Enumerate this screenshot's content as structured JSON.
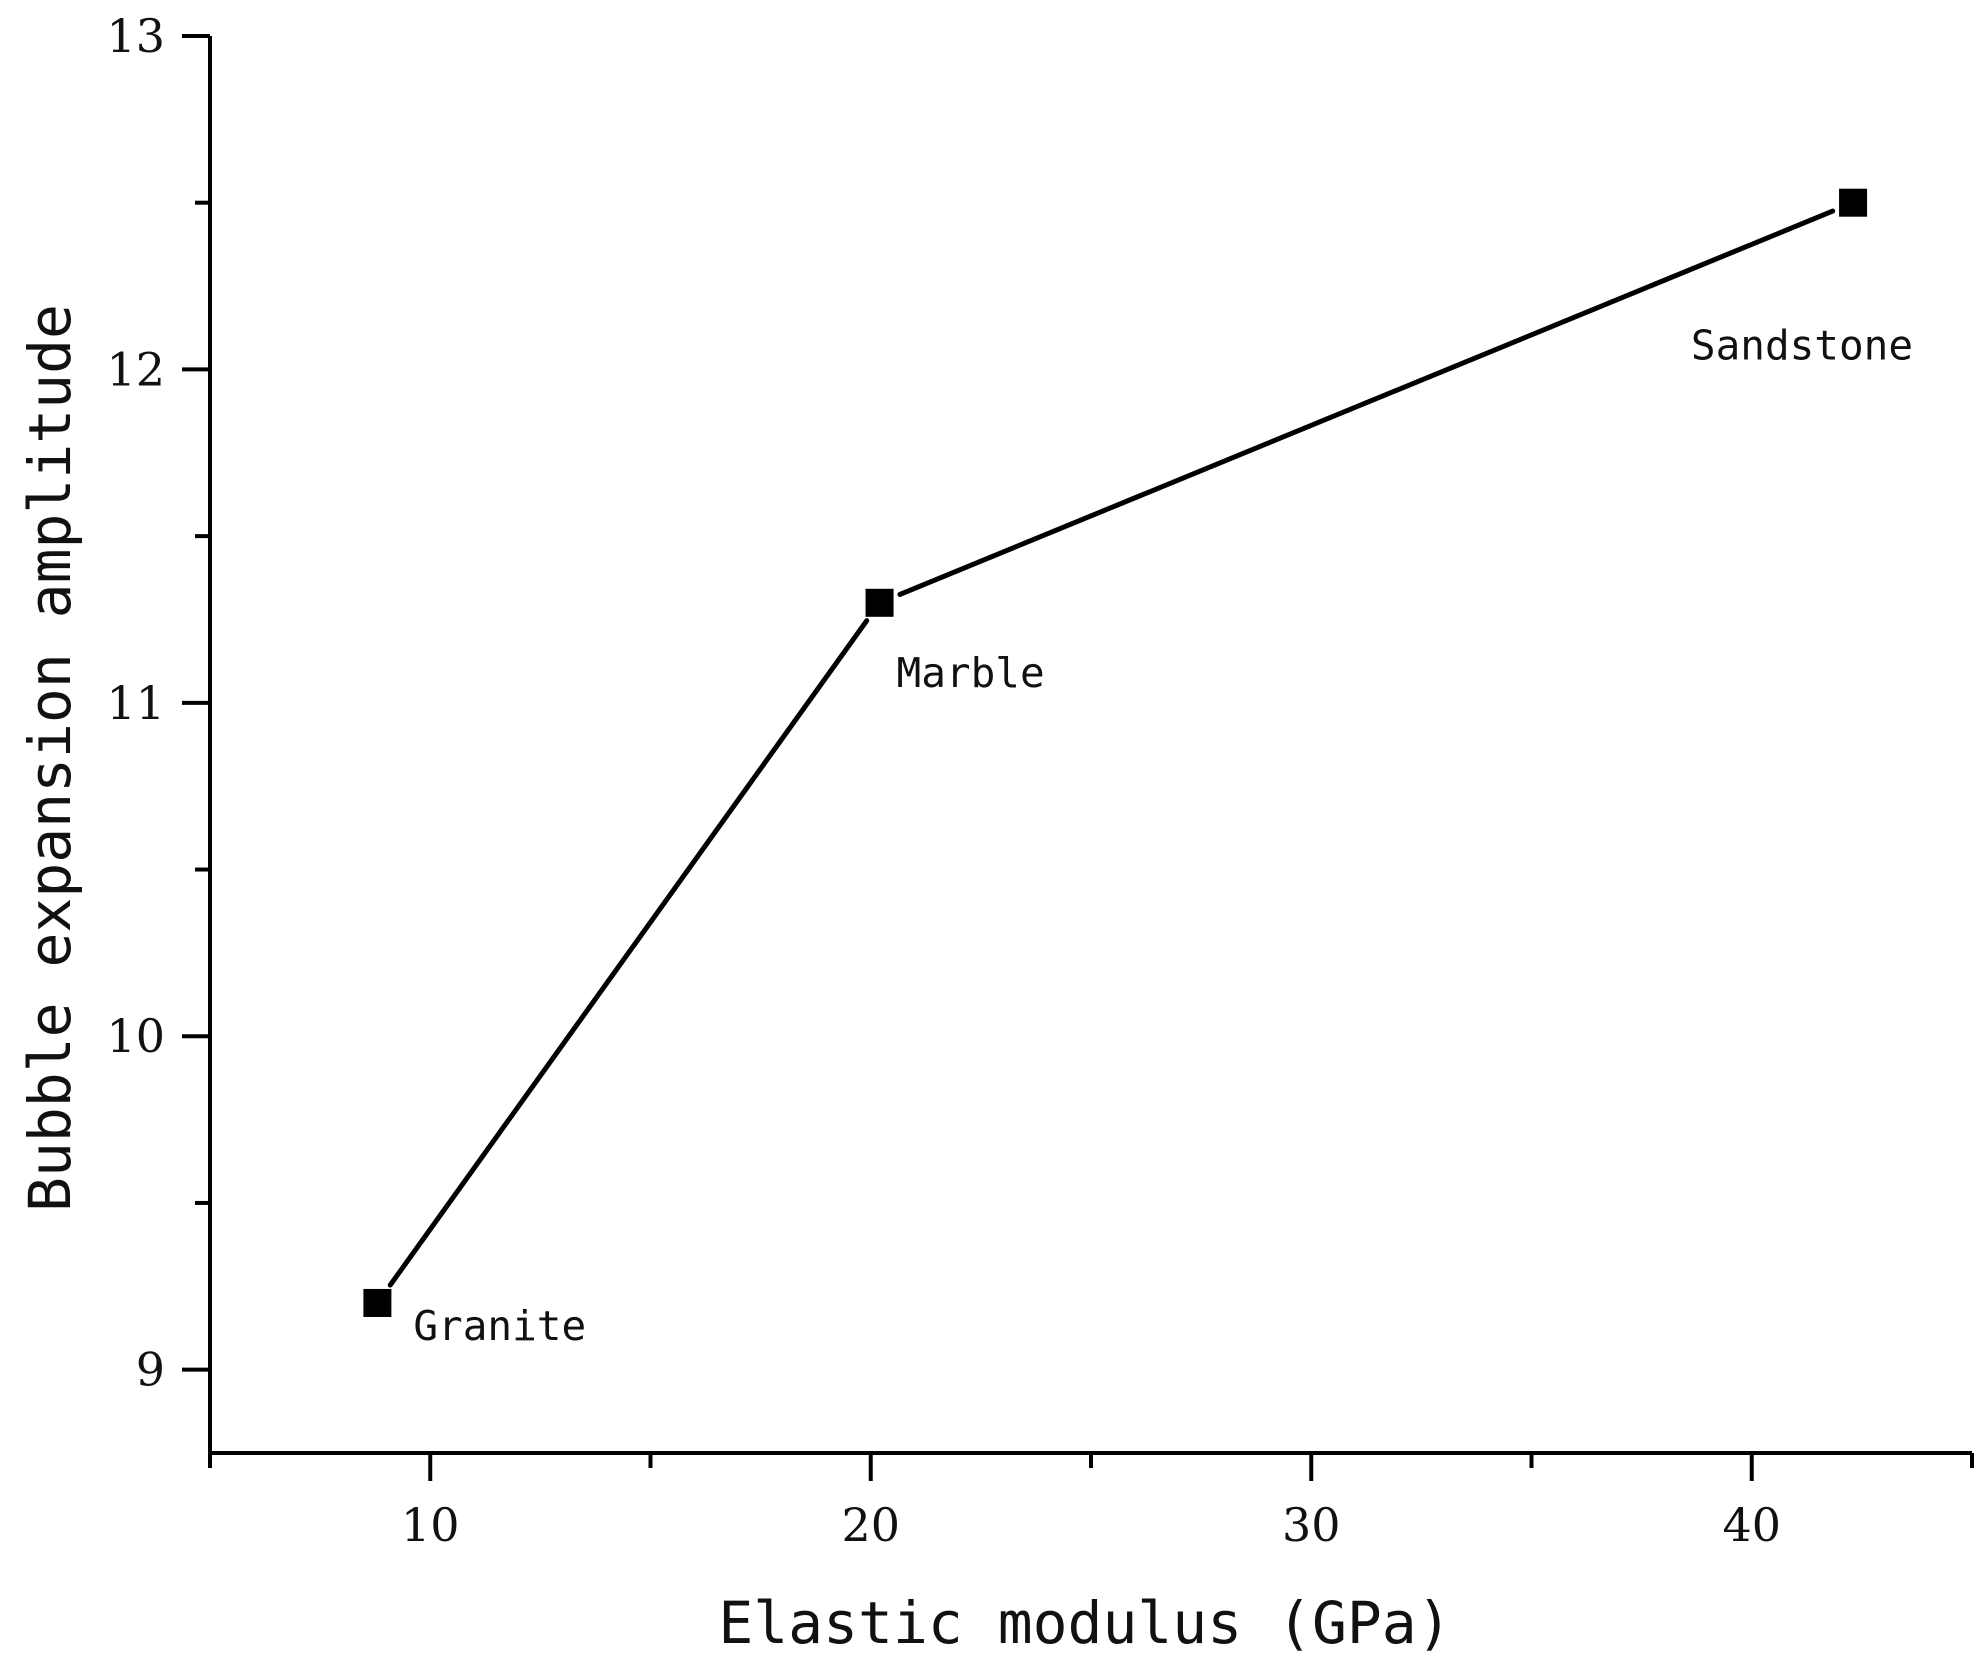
{
  "chart_data": {
    "type": "line",
    "title": "",
    "xlabel": "Elastic modulus (GPa)",
    "ylabel": "Bubble expansion amplitude",
    "xlim": [
      5,
      45
    ],
    "ylim": [
      8.75,
      13
    ],
    "x_ticks": [
      10,
      20,
      30,
      40
    ],
    "x_minor_ticks": [
      5,
      15,
      25,
      35,
      45
    ],
    "y_ticks": [
      9,
      10,
      11,
      12,
      13
    ],
    "y_minor_ticks": [
      9.5,
      10.5,
      11.5,
      12.5
    ],
    "grid": false,
    "legend": "none",
    "color": "#000000",
    "marker": "square",
    "series": [
      {
        "x": [
          8.8,
          20.2,
          42.3
        ],
        "y": [
          9.2,
          11.3,
          12.5
        ]
      }
    ],
    "annotations": [
      {
        "text": "Granite",
        "x": 8.8,
        "y": 9.2
      },
      {
        "text": "Marble",
        "x": 20.2,
        "y": 11.3
      },
      {
        "text": "Sandstone",
        "x": 42.3,
        "y": 12.5
      }
    ]
  }
}
